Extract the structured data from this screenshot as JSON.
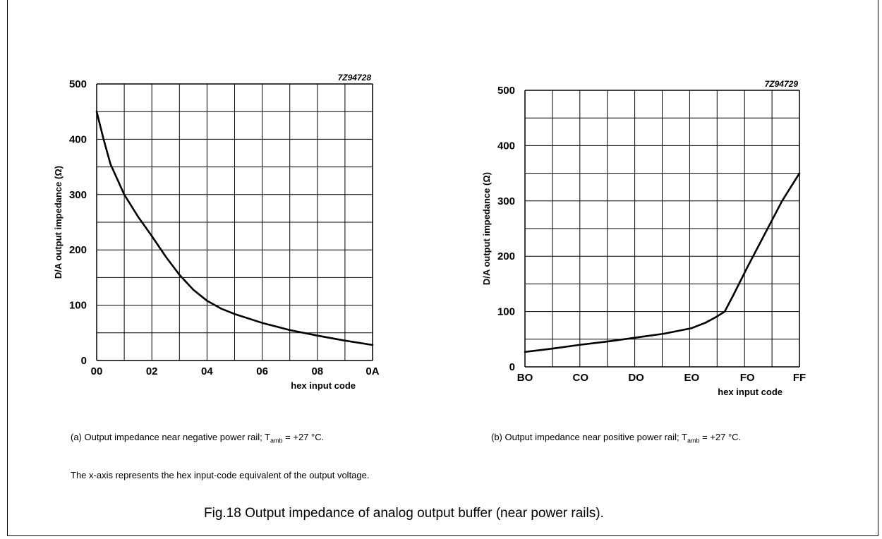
{
  "chart_data": [
    {
      "type": "line",
      "code": "7Z94728",
      "ylabel": "D/A output impedance (Ω)",
      "xlabel": "hex input code",
      "ylim": [
        0,
        500
      ],
      "yticks": [
        0,
        100,
        200,
        300,
        400,
        500
      ],
      "xlim": [
        0,
        10
      ],
      "xticks": [
        {
          "v": 0,
          "label": "00"
        },
        {
          "v": 2,
          "label": "02"
        },
        {
          "v": 4,
          "label": "04"
        },
        {
          "v": 6,
          "label": "06"
        },
        {
          "v": 8,
          "label": "08"
        },
        {
          "v": 10,
          "label": "0A"
        }
      ],
      "x": [
        0,
        0.25,
        0.5,
        1,
        1.5,
        2,
        2.5,
        3,
        3.5,
        4,
        4.5,
        5,
        6,
        7,
        8,
        9,
        10
      ],
      "y": [
        450,
        400,
        355,
        300,
        260,
        225,
        188,
        155,
        128,
        108,
        94,
        84,
        68,
        55,
        45,
        36,
        28
      ],
      "grid": true
    },
    {
      "type": "line",
      "code": "7Z94729",
      "ylabel": "D/A output impedance (Ω)",
      "xlabel": "hex input code",
      "ylim": [
        0,
        500
      ],
      "yticks": [
        0,
        100,
        200,
        300,
        400,
        500
      ],
      "xlim": [
        176,
        255
      ],
      "xticks": [
        {
          "v": 176,
          "label": "BO"
        },
        {
          "v": 192,
          "label": "CO"
        },
        {
          "v": 208,
          "label": "DO"
        },
        {
          "v": 224,
          "label": "EO"
        },
        {
          "v": 240,
          "label": "FO"
        },
        {
          "v": 255,
          "label": "FF"
        }
      ],
      "x": [
        176,
        184,
        192,
        200,
        208,
        216,
        224,
        228,
        231,
        233.5,
        236,
        240,
        245,
        250,
        255
      ],
      "y": [
        27,
        33,
        40,
        46,
        53,
        60,
        70,
        80,
        90,
        100,
        130,
        180,
        240,
        300,
        350
      ],
      "grid": true
    }
  ],
  "captions": {
    "a_pre": "(a) Output impedance near negative power rail; T",
    "a_sub": "amb",
    "a_post": " = +27 °C.",
    "b_pre": "(b) Output impedance near positive power rail; T",
    "b_sub": "amb",
    "b_post": " = +27 °C.",
    "note": "The x-axis represents the hex input-code equivalent of the output voltage.",
    "figure": "Fig.18  Output impedance of analog output buffer (near power rails)."
  }
}
